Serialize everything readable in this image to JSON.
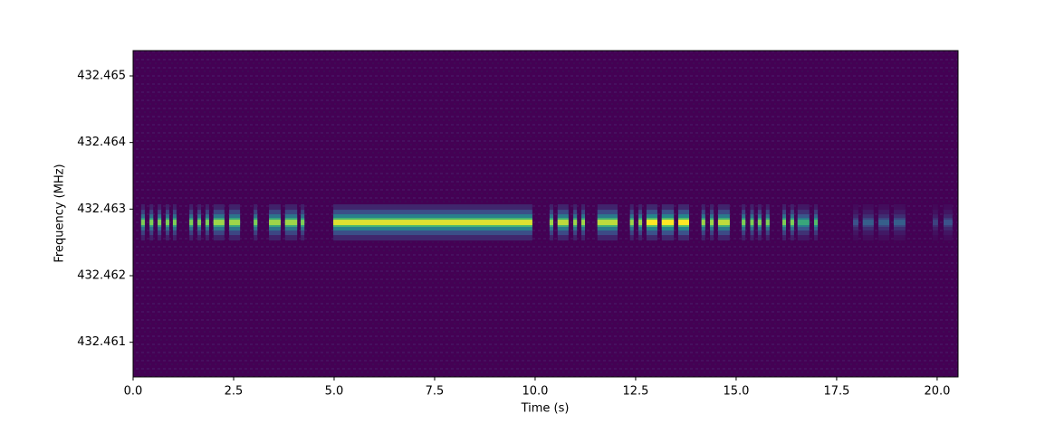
{
  "chart_data": {
    "type": "spectrogram",
    "x_label": "Time (s)",
    "y_label": "Frequency (MHz)",
    "xlim": [
      0,
      20.52
    ],
    "ylim": [
      432.46048,
      432.46538
    ],
    "xticks": [
      {
        "value": 0,
        "label": "0.0"
      },
      2.5,
      {
        "value": 5,
        "label": "5.0"
      },
      7.5,
      {
        "value": 10,
        "label": "10.0"
      },
      12.5,
      {
        "value": 15,
        "label": "15.0"
      },
      17.5,
      {
        "value": 20,
        "label": "20.0"
      }
    ],
    "yticks": [
      432.461,
      432.462,
      432.463,
      432.464,
      432.465
    ],
    "carrier": 432.4628,
    "bursts": [
      {
        "start": 0.2,
        "end": 0.29,
        "level": 0.8
      },
      {
        "start": 0.41,
        "end": 0.5,
        "level": 0.8
      },
      {
        "start": 0.61,
        "end": 0.7,
        "level": 0.8
      },
      {
        "start": 0.81,
        "end": 0.9,
        "level": 0.8
      },
      {
        "start": 0.99,
        "end": 1.08,
        "level": 0.8
      },
      {
        "start": 1.4,
        "end": 1.49,
        "level": 0.8
      },
      {
        "start": 1.6,
        "end": 1.69,
        "level": 0.8
      },
      {
        "start": 1.8,
        "end": 1.89,
        "level": 0.8
      },
      {
        "start": 2.0,
        "end": 2.27,
        "level": 0.85
      },
      {
        "start": 2.39,
        "end": 2.66,
        "level": 0.85
      },
      {
        "start": 3.0,
        "end": 3.09,
        "level": 0.8
      },
      {
        "start": 3.38,
        "end": 3.67,
        "level": 0.85
      },
      {
        "start": 3.78,
        "end": 4.08,
        "level": 0.85
      },
      {
        "start": 4.17,
        "end": 4.26,
        "level": 0.8
      },
      {
        "start": 4.98,
        "end": 9.93,
        "level": 0.95
      },
      {
        "start": 10.36,
        "end": 10.45,
        "level": 0.85
      },
      {
        "start": 10.56,
        "end": 10.83,
        "level": 0.9
      },
      {
        "start": 10.95,
        "end": 11.04,
        "level": 0.85
      },
      {
        "start": 11.15,
        "end": 11.24,
        "level": 0.85
      },
      {
        "start": 11.55,
        "end": 12.05,
        "level": 0.9
      },
      {
        "start": 12.36,
        "end": 12.45,
        "level": 0.85
      },
      {
        "start": 12.57,
        "end": 12.66,
        "level": 0.85
      },
      {
        "start": 12.77,
        "end": 13.04,
        "level": 1.0
      },
      {
        "start": 13.15,
        "end": 13.45,
        "level": 1.0
      },
      {
        "start": 13.56,
        "end": 13.83,
        "level": 1.0
      },
      {
        "start": 14.14,
        "end": 14.23,
        "level": 0.85
      },
      {
        "start": 14.35,
        "end": 14.44,
        "level": 0.85
      },
      {
        "start": 14.55,
        "end": 14.84,
        "level": 0.9
      },
      {
        "start": 15.14,
        "end": 15.23,
        "level": 0.8
      },
      {
        "start": 15.35,
        "end": 15.44,
        "level": 0.8
      },
      {
        "start": 15.54,
        "end": 15.63,
        "level": 0.8
      },
      {
        "start": 15.74,
        "end": 15.83,
        "level": 0.8
      },
      {
        "start": 16.15,
        "end": 16.24,
        "level": 0.8
      },
      {
        "start": 16.35,
        "end": 16.44,
        "level": 0.8
      },
      {
        "start": 16.53,
        "end": 16.82,
        "level": 0.6
      },
      {
        "start": 16.94,
        "end": 17.03,
        "level": 0.7
      },
      {
        "start": 17.91,
        "end": 18.04,
        "level": 0.25
      },
      {
        "start": 18.15,
        "end": 18.42,
        "level": 0.3
      },
      {
        "start": 18.54,
        "end": 18.81,
        "level": 0.3
      },
      {
        "start": 18.92,
        "end": 19.21,
        "level": 0.3
      },
      {
        "start": 19.89,
        "end": 20.02,
        "level": 0.2
      },
      {
        "start": 20.16,
        "end": 20.38,
        "level": 0.25
      }
    ]
  }
}
